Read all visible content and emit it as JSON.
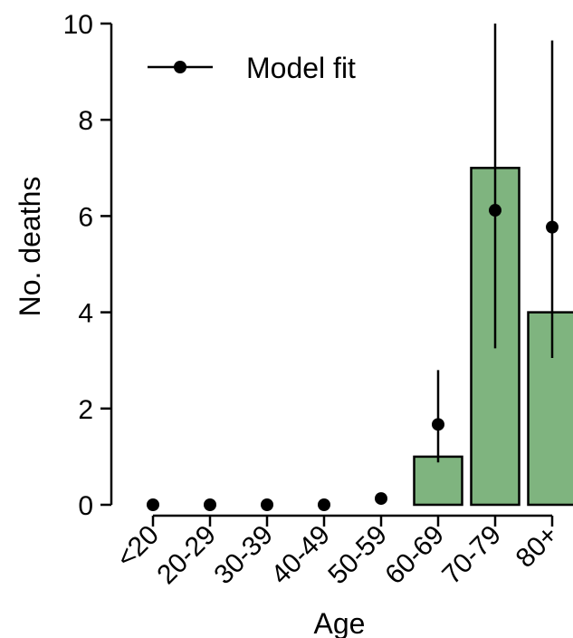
{
  "chart_data": {
    "type": "bar",
    "title": "",
    "xlabel": "Age",
    "ylabel": "No. deaths",
    "categories": [
      "<20",
      "20-29",
      "30-39",
      "40-49",
      "50-59",
      "60-69",
      "70-79",
      "80+"
    ],
    "values": [
      0,
      0,
      0,
      0,
      0,
      1,
      7,
      4
    ],
    "model_fit": {
      "name": "Model fit",
      "values": [
        0.0,
        0.0,
        0.0,
        0.0,
        0.13,
        1.67,
        6.12,
        5.77
      ],
      "error_low": [
        0.0,
        0.0,
        0.0,
        0.0,
        0.0,
        0.88,
        3.25,
        3.05
      ],
      "error_high": [
        0.0,
        0.0,
        0.0,
        0.0,
        0.0,
        2.8,
        10.0,
        9.65
      ]
    },
    "ylim": [
      0,
      10
    ],
    "yticks": [
      0,
      2,
      4,
      6,
      8,
      10
    ],
    "grid": false,
    "legend_position": "top-left",
    "bar_color": "#7fb47f",
    "edge_color": "#000000",
    "point_color": "#000000"
  }
}
